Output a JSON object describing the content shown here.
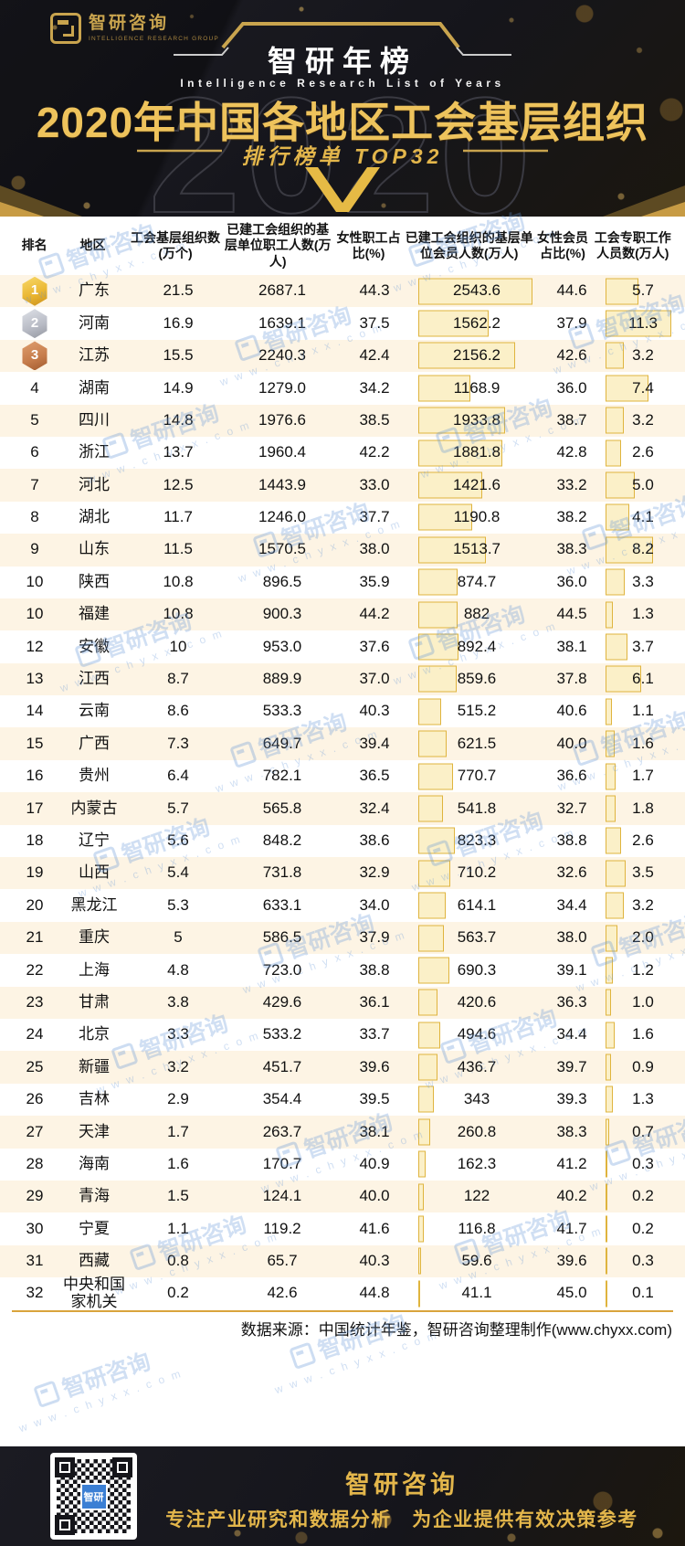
{
  "header": {
    "logo_cn": "智研咨询",
    "logo_en": "INTELLIGENCE RESEARCH GROUP",
    "banner_title": "智研年榜",
    "banner_en": "Intelligence Research List of Years",
    "main_title": "2020年中国各地区工会基层组织",
    "sub_title": "排行榜单  TOP32",
    "year_watermark": "2020"
  },
  "chart_data": {
    "type": "table",
    "title": "2020年中国各地区工会基层组织排行榜单TOP32",
    "columns": [
      "排名",
      "地区",
      "工会基层组织数(万个)",
      "已建工会组织的基层单位职工人数(万人)",
      "女性职工占比(%)",
      "已建工会组织的基层单位会员人数(万人)",
      "女性会员占比(%)",
      "工会专职工作人员数(万人)"
    ],
    "bar_max": {
      "member_count": 2543.6,
      "full_time_staff": 11.3
    },
    "rows": [
      {
        "rank": "1",
        "region": "广东",
        "org_count": "21.5",
        "staff_count": "2687.1",
        "female_staff_pct": "44.3",
        "member_count": "2543.6",
        "female_member_pct": "44.6",
        "full_time_staff": "5.7"
      },
      {
        "rank": "2",
        "region": "河南",
        "org_count": "16.9",
        "staff_count": "1639.1",
        "female_staff_pct": "37.5",
        "member_count": "1562.2",
        "female_member_pct": "37.9",
        "full_time_staff": "11.3"
      },
      {
        "rank": "3",
        "region": "江苏",
        "org_count": "15.5",
        "staff_count": "2240.3",
        "female_staff_pct": "42.4",
        "member_count": "2156.2",
        "female_member_pct": "42.6",
        "full_time_staff": "3.2"
      },
      {
        "rank": "4",
        "region": "湖南",
        "org_count": "14.9",
        "staff_count": "1279.0",
        "female_staff_pct": "34.2",
        "member_count": "1168.9",
        "female_member_pct": "36.0",
        "full_time_staff": "7.4"
      },
      {
        "rank": "5",
        "region": "四川",
        "org_count": "14.8",
        "staff_count": "1976.6",
        "female_staff_pct": "38.5",
        "member_count": "1933.8",
        "female_member_pct": "38.7",
        "full_time_staff": "3.2"
      },
      {
        "rank": "6",
        "region": "浙江",
        "org_count": "13.7",
        "staff_count": "1960.4",
        "female_staff_pct": "42.2",
        "member_count": "1881.8",
        "female_member_pct": "42.8",
        "full_time_staff": "2.6"
      },
      {
        "rank": "7",
        "region": "河北",
        "org_count": "12.5",
        "staff_count": "1443.9",
        "female_staff_pct": "33.0",
        "member_count": "1421.6",
        "female_member_pct": "33.2",
        "full_time_staff": "5.0"
      },
      {
        "rank": "8",
        "region": "湖北",
        "org_count": "11.7",
        "staff_count": "1246.0",
        "female_staff_pct": "37.7",
        "member_count": "1190.8",
        "female_member_pct": "38.2",
        "full_time_staff": "4.1"
      },
      {
        "rank": "9",
        "region": "山东",
        "org_count": "11.5",
        "staff_count": "1570.5",
        "female_staff_pct": "38.0",
        "member_count": "1513.7",
        "female_member_pct": "38.3",
        "full_time_staff": "8.2"
      },
      {
        "rank": "10",
        "region": "陕西",
        "org_count": "10.8",
        "staff_count": "896.5",
        "female_staff_pct": "35.9",
        "member_count": "874.7",
        "female_member_pct": "36.0",
        "full_time_staff": "3.3"
      },
      {
        "rank": "10",
        "region": "福建",
        "org_count": "10.8",
        "staff_count": "900.3",
        "female_staff_pct": "44.2",
        "member_count": "882",
        "female_member_pct": "44.5",
        "full_time_staff": "1.3"
      },
      {
        "rank": "12",
        "region": "安徽",
        "org_count": "10",
        "staff_count": "953.0",
        "female_staff_pct": "37.6",
        "member_count": "892.4",
        "female_member_pct": "38.1",
        "full_time_staff": "3.7"
      },
      {
        "rank": "13",
        "region": "江西",
        "org_count": "8.7",
        "staff_count": "889.9",
        "female_staff_pct": "37.0",
        "member_count": "859.6",
        "female_member_pct": "37.8",
        "full_time_staff": "6.1"
      },
      {
        "rank": "14",
        "region": "云南",
        "org_count": "8.6",
        "staff_count": "533.3",
        "female_staff_pct": "40.3",
        "member_count": "515.2",
        "female_member_pct": "40.6",
        "full_time_staff": "1.1"
      },
      {
        "rank": "15",
        "region": "广西",
        "org_count": "7.3",
        "staff_count": "649.7",
        "female_staff_pct": "39.4",
        "member_count": "621.5",
        "female_member_pct": "40.0",
        "full_time_staff": "1.6"
      },
      {
        "rank": "16",
        "region": "贵州",
        "org_count": "6.4",
        "staff_count": "782.1",
        "female_staff_pct": "36.5",
        "member_count": "770.7",
        "female_member_pct": "36.6",
        "full_time_staff": "1.7"
      },
      {
        "rank": "17",
        "region": "内蒙古",
        "org_count": "5.7",
        "staff_count": "565.8",
        "female_staff_pct": "32.4",
        "member_count": "541.8",
        "female_member_pct": "32.7",
        "full_time_staff": "1.8"
      },
      {
        "rank": "18",
        "region": "辽宁",
        "org_count": "5.6",
        "staff_count": "848.2",
        "female_staff_pct": "38.6",
        "member_count": "823.3",
        "female_member_pct": "38.8",
        "full_time_staff": "2.6"
      },
      {
        "rank": "19",
        "region": "山西",
        "org_count": "5.4",
        "staff_count": "731.8",
        "female_staff_pct": "32.9",
        "member_count": "710.2",
        "female_member_pct": "32.6",
        "full_time_staff": "3.5"
      },
      {
        "rank": "20",
        "region": "黑龙江",
        "org_count": "5.3",
        "staff_count": "633.1",
        "female_staff_pct": "34.0",
        "member_count": "614.1",
        "female_member_pct": "34.4",
        "full_time_staff": "3.2"
      },
      {
        "rank": "21",
        "region": "重庆",
        "org_count": "5",
        "staff_count": "586.5",
        "female_staff_pct": "37.9",
        "member_count": "563.7",
        "female_member_pct": "38.0",
        "full_time_staff": "2.0"
      },
      {
        "rank": "22",
        "region": "上海",
        "org_count": "4.8",
        "staff_count": "723.0",
        "female_staff_pct": "38.8",
        "member_count": "690.3",
        "female_member_pct": "39.1",
        "full_time_staff": "1.2"
      },
      {
        "rank": "23",
        "region": "甘肃",
        "org_count": "3.8",
        "staff_count": "429.6",
        "female_staff_pct": "36.1",
        "member_count": "420.6",
        "female_member_pct": "36.3",
        "full_time_staff": "1.0"
      },
      {
        "rank": "24",
        "region": "北京",
        "org_count": "3.3",
        "staff_count": "533.2",
        "female_staff_pct": "33.7",
        "member_count": "494.6",
        "female_member_pct": "34.4",
        "full_time_staff": "1.6"
      },
      {
        "rank": "25",
        "region": "新疆",
        "org_count": "3.2",
        "staff_count": "451.7",
        "female_staff_pct": "39.6",
        "member_count": "436.7",
        "female_member_pct": "39.7",
        "full_time_staff": "0.9"
      },
      {
        "rank": "26",
        "region": "吉林",
        "org_count": "2.9",
        "staff_count": "354.4",
        "female_staff_pct": "39.5",
        "member_count": "343",
        "female_member_pct": "39.3",
        "full_time_staff": "1.3"
      },
      {
        "rank": "27",
        "region": "天津",
        "org_count": "1.7",
        "staff_count": "263.7",
        "female_staff_pct": "38.1",
        "member_count": "260.8",
        "female_member_pct": "38.3",
        "full_time_staff": "0.7"
      },
      {
        "rank": "28",
        "region": "海南",
        "org_count": "1.6",
        "staff_count": "170.7",
        "female_staff_pct": "40.9",
        "member_count": "162.3",
        "female_member_pct": "41.2",
        "full_time_staff": "0.3"
      },
      {
        "rank": "29",
        "region": "青海",
        "org_count": "1.5",
        "staff_count": "124.1",
        "female_staff_pct": "40.0",
        "member_count": "122",
        "female_member_pct": "40.2",
        "full_time_staff": "0.2"
      },
      {
        "rank": "30",
        "region": "宁夏",
        "org_count": "1.1",
        "staff_count": "119.2",
        "female_staff_pct": "41.6",
        "member_count": "116.8",
        "female_member_pct": "41.7",
        "full_time_staff": "0.2"
      },
      {
        "rank": "31",
        "region": "西藏",
        "org_count": "0.8",
        "staff_count": "65.7",
        "female_staff_pct": "40.3",
        "member_count": "59.6",
        "female_member_pct": "39.6",
        "full_time_staff": "0.3"
      },
      {
        "rank": "32",
        "region": "中央和国家机关",
        "org_count": "0.2",
        "staff_count": "42.6",
        "female_staff_pct": "44.8",
        "member_count": "41.1",
        "female_member_pct": "45.0",
        "full_time_staff": "0.1"
      }
    ]
  },
  "source": {
    "text": "数据来源：中国统计年鉴，智研咨询整理制作(www.chyxx.com)"
  },
  "watermark": {
    "brand": "智研咨询",
    "url": "www.chyxx.com"
  },
  "footer": {
    "brand": "智研咨询",
    "tagline": "专注产业研究和数据分析　为企业提供有效决策参考",
    "qr_label": "智研"
  },
  "colors": {
    "gold": "#e3b64b",
    "bar_fill": "#fbf0c8",
    "bar_border": "#dfb43e",
    "row_alt": "#fdf4e4",
    "dark_bg": "#17171d",
    "watermark_blue": "#5b9bd5"
  }
}
